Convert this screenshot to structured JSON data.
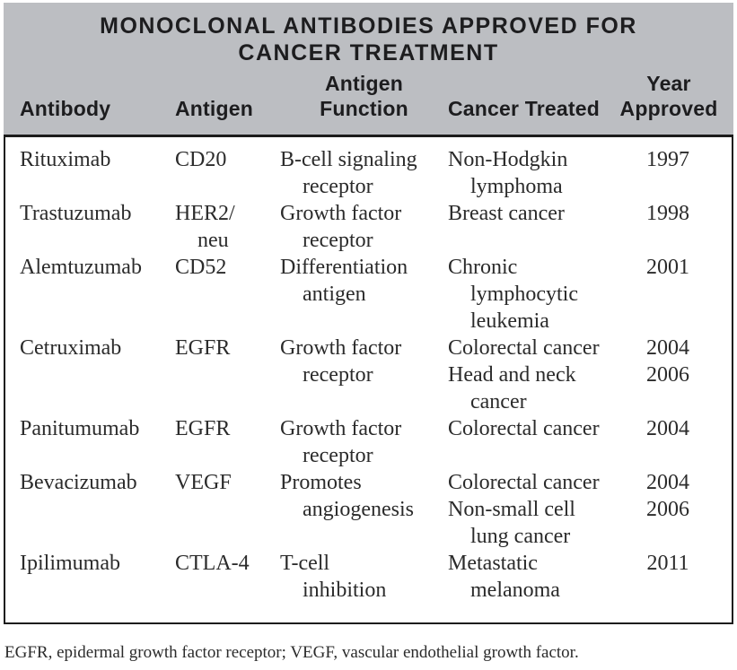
{
  "table": {
    "title_line1": "MONOCLONAL ANTIBODIES APPROVED FOR",
    "title_line2": "CANCER TREATMENT",
    "columns": [
      {
        "label": "Antibody"
      },
      {
        "label": "Antigen"
      },
      {
        "label_line1": "Antigen",
        "label_line2": "Function"
      },
      {
        "label": "Cancer Treated"
      },
      {
        "label_line1": "Year",
        "label_line2": "Approved"
      }
    ],
    "column_keys": [
      "antibody",
      "antigen",
      "antigen-function",
      "cancer-treated",
      "year-approved"
    ],
    "body_lines": [
      [
        "Rituximab",
        "CD20",
        "B-cell signaling",
        "Non-Hodgkin",
        "1997"
      ],
      [
        null,
        null,
        {
          "t": "receptor",
          "indent": true
        },
        {
          "t": "lymphoma",
          "indent": true
        },
        null
      ],
      [
        "Trastuzumab",
        "HER2/",
        "Growth factor",
        "Breast cancer",
        "1998"
      ],
      [
        null,
        {
          "t": "neu",
          "indent": true
        },
        {
          "t": "receptor",
          "indent": true
        },
        null,
        null
      ],
      [
        "Alemtuzumab",
        "CD52",
        "Differentiation",
        "Chronic",
        "2001"
      ],
      [
        null,
        null,
        {
          "t": "antigen",
          "indent": true
        },
        {
          "t": "lymphocytic",
          "indent": true
        },
        null
      ],
      [
        null,
        null,
        null,
        {
          "t": "leukemia",
          "indent": true
        },
        null
      ],
      [
        "Cetruximab",
        "EGFR",
        "Growth factor",
        "Colorectal cancer",
        "2004"
      ],
      [
        null,
        null,
        {
          "t": "receptor",
          "indent": true
        },
        "Head and neck",
        "2006"
      ],
      [
        null,
        null,
        null,
        {
          "t": "cancer",
          "indent": true
        },
        null
      ],
      [
        "Panitumumab",
        "EGFR",
        "Growth factor",
        "Colorectal cancer",
        "2004"
      ],
      [
        null,
        null,
        {
          "t": "receptor",
          "indent": true
        },
        null,
        null
      ],
      [
        "Bevacizumab",
        "VEGF",
        "Promotes",
        "Colorectal cancer",
        "2004"
      ],
      [
        null,
        null,
        {
          "t": "angiogenesis",
          "indent": true
        },
        "Non-small cell",
        "2006"
      ],
      [
        null,
        null,
        null,
        {
          "t": "lung cancer",
          "indent": true
        },
        null
      ],
      [
        "Ipilimumab",
        "CTLA-4",
        "T-cell",
        "Metastatic",
        "2011"
      ],
      [
        null,
        null,
        {
          "t": "inhibition",
          "indent": true
        },
        {
          "t": "melanoma",
          "indent": true
        },
        null
      ]
    ]
  },
  "footnote": "EGFR, epidermal growth factor receptor; VEGF, vascular endothelial growth factor.",
  "colors": {
    "header_bg": "#bcbec2",
    "border": "#1c1c1c",
    "text": "#2b2b2b",
    "header_text": "#1d1d1f"
  }
}
